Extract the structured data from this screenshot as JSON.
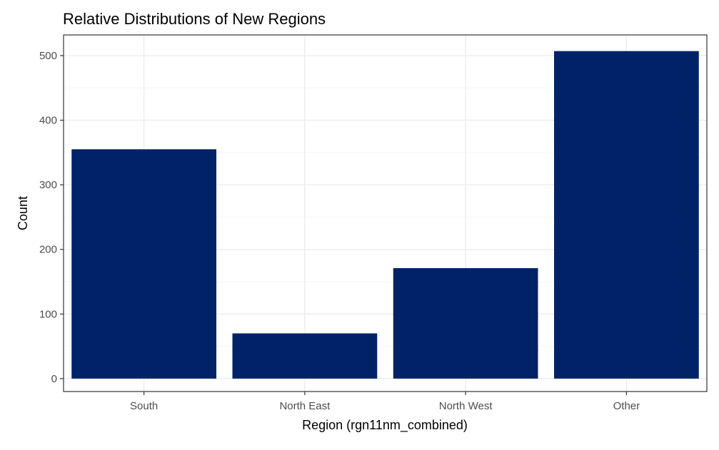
{
  "chart_data": {
    "type": "bar",
    "title": "Relative Distributions of New Regions",
    "xlabel": "Region (rgn11nm_combined)",
    "ylabel": "Count",
    "categories": [
      "South",
      "North East",
      "North West",
      "Other"
    ],
    "values": [
      355,
      70,
      171,
      507
    ],
    "ylim": [
      -20,
      532
    ],
    "yticks": [
      0,
      100,
      200,
      300,
      400,
      500
    ],
    "grid": true,
    "legend": "none",
    "colors": {
      "bar": "#002266",
      "grid_major": "#ebebeb",
      "grid_minor": "#f5f5f5",
      "panel_border": "#333333",
      "tick_text": "#4d4d4d",
      "title_text": "#000000"
    }
  }
}
